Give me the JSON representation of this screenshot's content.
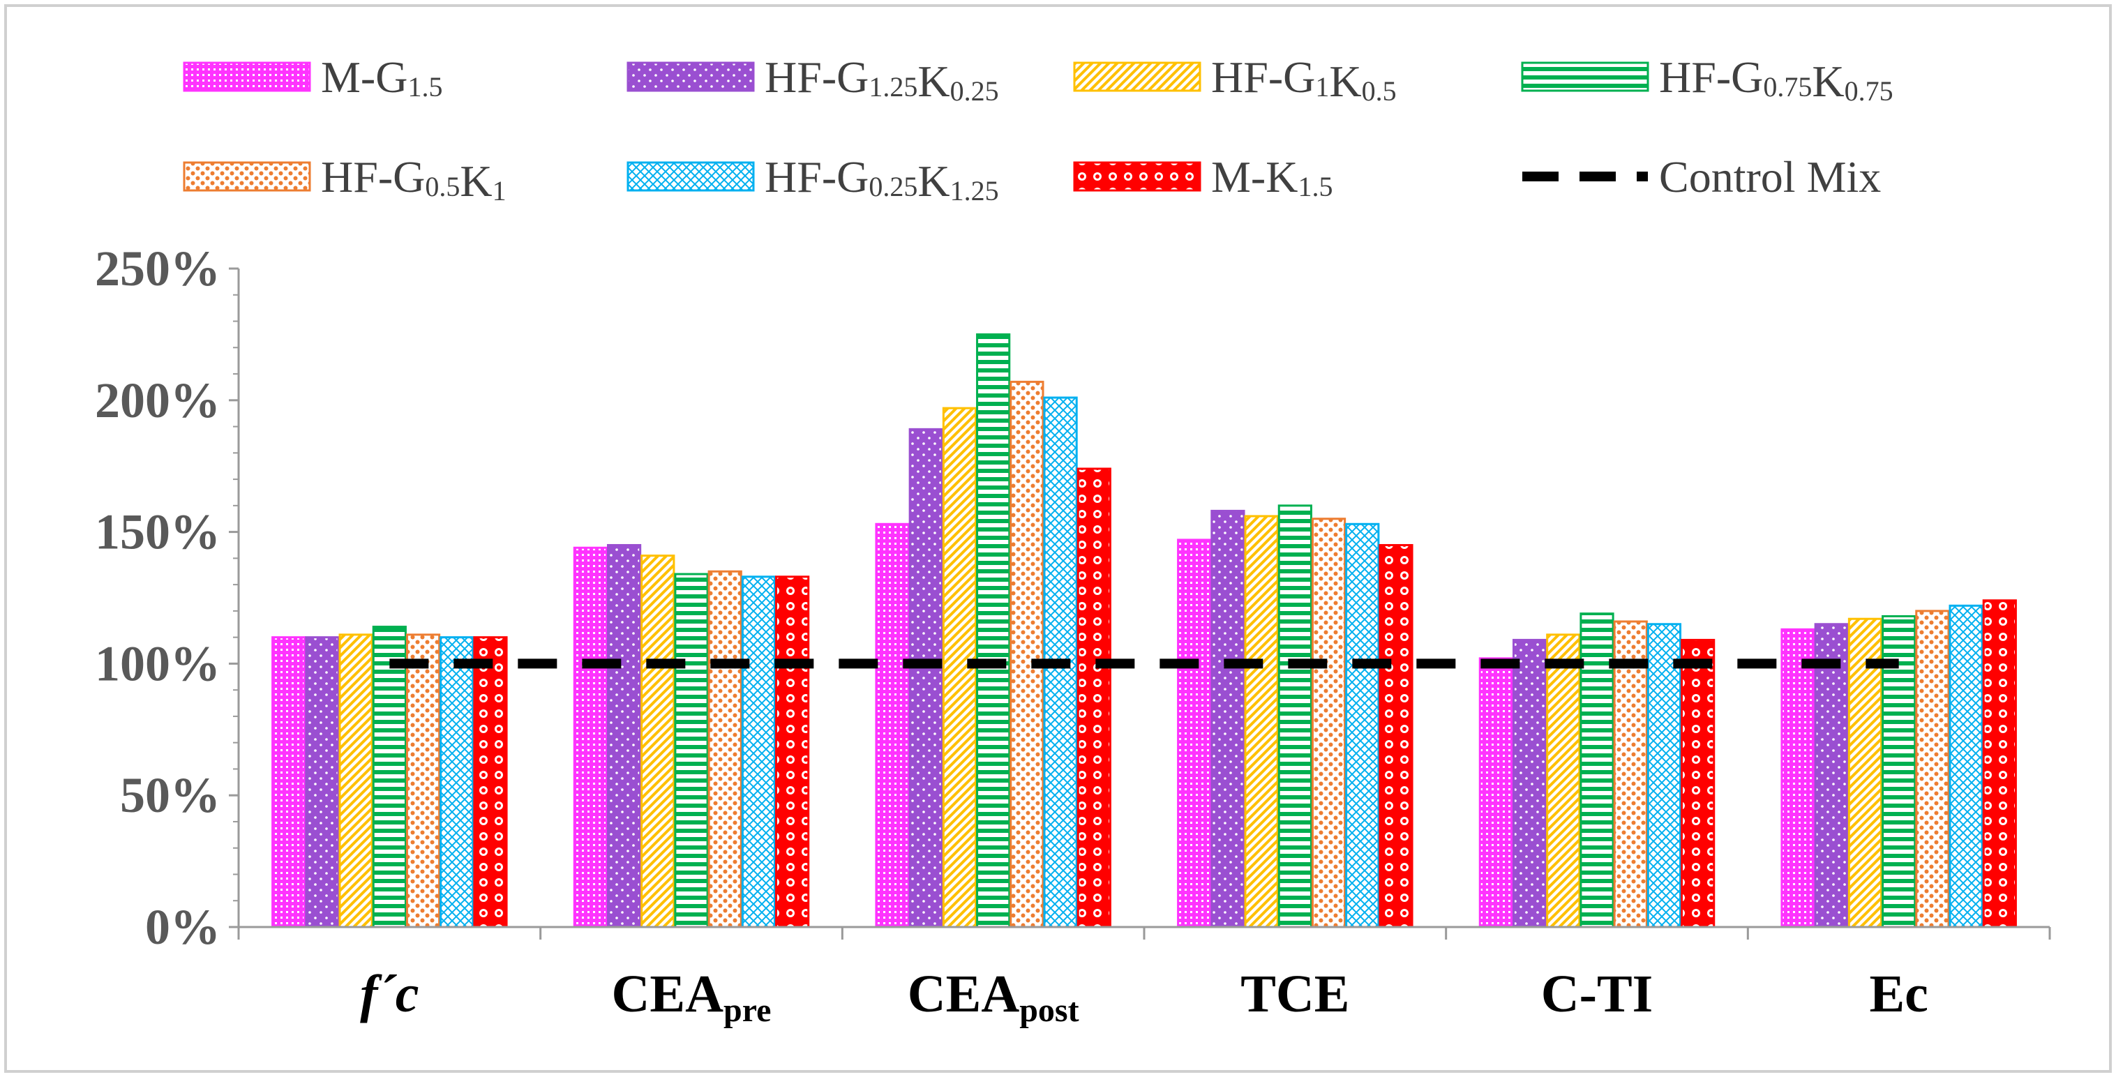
{
  "chart_data": {
    "type": "bar",
    "categories": [
      {
        "main": "f´c",
        "sub": ""
      },
      {
        "main": "CEA",
        "sub": "pre"
      },
      {
        "main": "CEA",
        "sub": "post"
      },
      {
        "main": "TCE",
        "sub": ""
      },
      {
        "main": "C-TI",
        "sub": ""
      },
      {
        "main": "Ec",
        "sub": ""
      }
    ],
    "ylim": [
      0,
      250
    ],
    "yticks": [
      "0%",
      "50%",
      "100%",
      "150%",
      "200%",
      "250%"
    ],
    "tick_values": [
      0,
      50,
      100,
      150,
      200,
      250
    ],
    "series": [
      {
        "name": "M-G1.5",
        "label_parts": [
          [
            "M-G",
            false
          ],
          [
            "1.5",
            true
          ]
        ],
        "color": "#ff33ff",
        "pattern": "dots-grid",
        "values": [
          110,
          144,
          153,
          147,
          102,
          113
        ]
      },
      {
        "name": "HF-G1.25K0.25",
        "label_parts": [
          [
            "HF-G",
            false
          ],
          [
            "1.25",
            true
          ],
          [
            "K",
            false
          ],
          [
            "0.25",
            true
          ]
        ],
        "color": "#9a4fd1",
        "pattern": "sparse-dots",
        "values": [
          110,
          145,
          189,
          158,
          109,
          115
        ]
      },
      {
        "name": "HF-G1K0.5",
        "label_parts": [
          [
            "HF-G",
            false
          ],
          [
            "1",
            true
          ],
          [
            "K",
            false
          ],
          [
            "0.5",
            true
          ]
        ],
        "color": "#ffc000",
        "pattern": "diagonal",
        "values": [
          111,
          141,
          197,
          156,
          111,
          117
        ]
      },
      {
        "name": "HF-G0.75K0.75",
        "label_parts": [
          [
            "HF-G",
            false
          ],
          [
            "0.75",
            true
          ],
          [
            "K",
            false
          ],
          [
            "0.75",
            true
          ]
        ],
        "color": "#00b050",
        "pattern": "horizontal",
        "values": [
          114,
          134,
          225,
          160,
          119,
          118
        ]
      },
      {
        "name": "HF-G0.5K1",
        "label_parts": [
          [
            "HF-G",
            false
          ],
          [
            "0.5",
            true
          ],
          [
            "K",
            false
          ],
          [
            "1",
            true
          ]
        ],
        "color": "#ed7d31",
        "pattern": "polka",
        "values": [
          111,
          135,
          207,
          155,
          116,
          120
        ]
      },
      {
        "name": "HF-G0.25K1.25",
        "label_parts": [
          [
            "HF-G",
            false
          ],
          [
            "0.25",
            true
          ],
          [
            "K",
            false
          ],
          [
            "1.25",
            true
          ]
        ],
        "color": "#00b0f0",
        "pattern": "zigzag",
        "values": [
          110,
          133,
          201,
          153,
          115,
          122
        ]
      },
      {
        "name": "M-K1.5",
        "label_parts": [
          [
            "M-K",
            false
          ],
          [
            "1.5",
            true
          ]
        ],
        "color": "#ff0000",
        "pattern": "rings",
        "values": [
          110,
          133,
          174,
          145,
          109,
          124
        ]
      }
    ],
    "reference_line": {
      "name": "Control Mix",
      "value": 100,
      "color": "#000000",
      "style": "dashed"
    },
    "legend_position": "top",
    "grid": false,
    "title": "",
    "xlabel": "",
    "ylabel": ""
  }
}
